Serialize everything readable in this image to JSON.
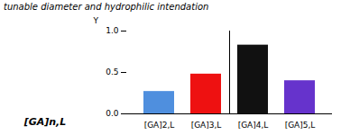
{
  "chart_data": {
    "type": "bar",
    "title": "tunable diameter and hydrophilic intendation",
    "annotations": [
      "[GA]n,L"
    ],
    "ylabel": "Y",
    "categories": [
      "[GA]2,L",
      "[GA]3,L",
      "[GA]4,L",
      "[GA]5,L"
    ],
    "values": [
      0.27,
      0.48,
      0.83,
      0.4
    ],
    "colors": [
      "#4f8fde",
      "#ee1111",
      "#111111",
      "#6633cc"
    ],
    "ylim": [
      0.0,
      1.0
    ],
    "yticks": [
      {
        "value": 0.0,
        "label": "0.0"
      },
      0.5,
      {
        "value": 1.0,
        "label": "1.0"
      }
    ],
    "grid": false
  }
}
